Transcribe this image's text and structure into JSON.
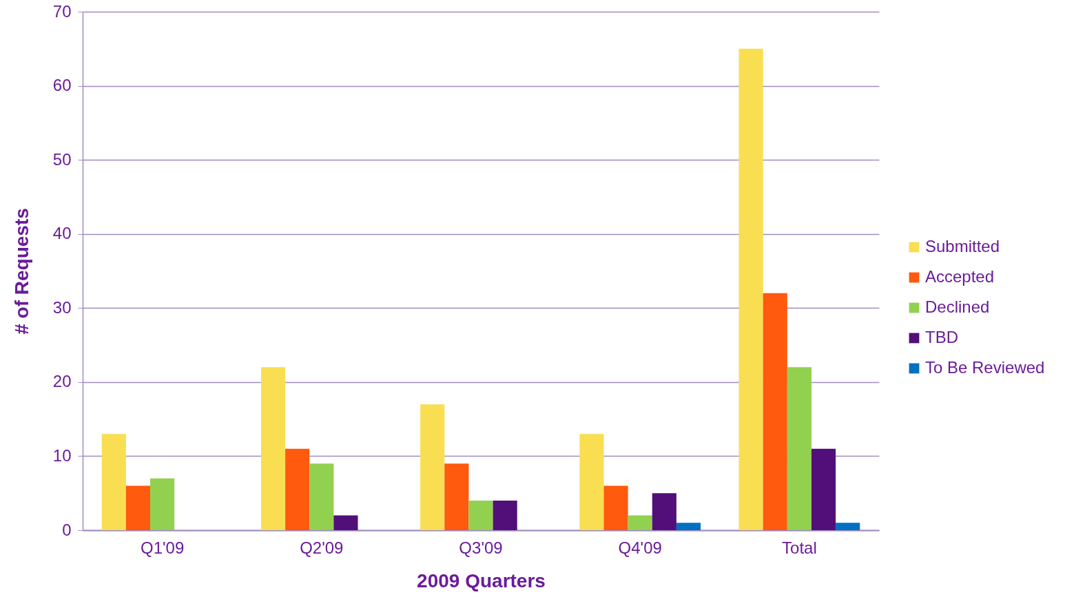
{
  "chart_data": {
    "type": "bar",
    "xlabel": "2009 Quarters",
    "ylabel": "# of Requests",
    "categories": [
      "Q1'09",
      "Q2'09",
      "Q3'09",
      "Q4'09",
      "Total"
    ],
    "series": [
      {
        "name": "Submitted",
        "color": "#f9de52",
        "values": [
          13,
          22,
          17,
          13,
          65
        ]
      },
      {
        "name": "Accepted",
        "color": "#ff5a0d",
        "values": [
          6,
          11,
          9,
          6,
          32
        ]
      },
      {
        "name": "Declined",
        "color": "#92d050",
        "values": [
          7,
          9,
          4,
          2,
          22
        ]
      },
      {
        "name": "TBD",
        "color": "#520f7a",
        "values": [
          0,
          2,
          4,
          5,
          11
        ]
      },
      {
        "name": "To Be Reviewed",
        "color": "#0070c0",
        "values": [
          0,
          0,
          0,
          1,
          1
        ]
      }
    ],
    "ylim": [
      0,
      70
    ],
    "yticks": [
      0,
      10,
      20,
      30,
      40,
      50,
      60,
      70
    ],
    "grid": "y",
    "legend": "right"
  }
}
